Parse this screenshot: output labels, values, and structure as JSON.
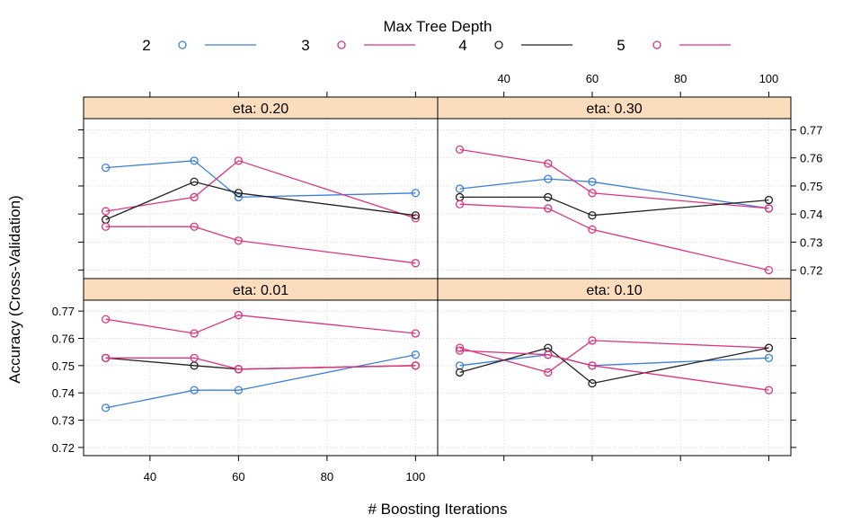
{
  "colors": {
    "depth_2": "#3b7fdb",
    "depth_3": "#e0337e",
    "depth_4": "#222222",
    "depth_5": "#e0337e",
    "strip_bg": "#fbdcbd",
    "grid": "#d9d9d9"
  },
  "chart_data": {
    "type": "line",
    "layout": "lattice 2x2 panels",
    "legend": {
      "title": "Max Tree Depth",
      "placement": "top",
      "entries": [
        {
          "label": "2",
          "color": "#3b7fdb"
        },
        {
          "label": "3",
          "color": "#e0337e"
        },
        {
          "label": "4",
          "color": "#222222"
        },
        {
          "label": "5",
          "color": "#e0337e"
        }
      ]
    },
    "xlabel": "# Boosting Iterations",
    "ylabel": "Accuracy (Cross-Validation)",
    "xlim": [
      25,
      105
    ],
    "ylim": [
      0.717,
      0.774
    ],
    "x_ticks": [
      "40",
      "60",
      "80",
      "100"
    ],
    "y_ticks": [
      "0.72",
      "0.73",
      "0.74",
      "0.75",
      "0.76",
      "0.77"
    ],
    "grid": true,
    "panels": [
      {
        "id": "tl",
        "strip": "eta: 0.20",
        "series": [
          {
            "depth": "2",
            "x": [
              30,
              50,
              60,
              100
            ],
            "y": [
              0.7565,
              0.759,
              0.746,
              0.7475
            ]
          },
          {
            "depth": "3",
            "x": [
              30,
              50,
              60,
              100
            ],
            "y": [
              0.741,
              0.746,
              0.759,
              0.7385
            ]
          },
          {
            "depth": "4",
            "x": [
              30,
              50,
              60,
              100
            ],
            "y": [
              0.738,
              0.7515,
              0.7475,
              0.7395
            ]
          },
          {
            "depth": "5",
            "x": [
              30,
              50,
              60,
              100
            ],
            "y": [
              0.7355,
              0.7355,
              0.7305,
              0.7225
            ]
          }
        ]
      },
      {
        "id": "tr",
        "strip": "eta: 0.30",
        "series": [
          {
            "depth": "2",
            "x": [
              30,
              50,
              60,
              100
            ],
            "y": [
              0.749,
              0.7525,
              0.7515,
              0.742
            ]
          },
          {
            "depth": "3",
            "x": [
              30,
              50,
              60,
              100
            ],
            "y": [
              0.763,
              0.758,
              0.7475,
              0.742
            ]
          },
          {
            "depth": "4",
            "x": [
              30,
              50,
              60,
              100
            ],
            "y": [
              0.746,
              0.746,
              0.7395,
              0.745
            ]
          },
          {
            "depth": "5",
            "x": [
              30,
              50,
              60,
              100
            ],
            "y": [
              0.7435,
              0.742,
              0.7345,
              0.72
            ]
          }
        ]
      },
      {
        "id": "bl",
        "strip": "eta: 0.01",
        "series": [
          {
            "depth": "2",
            "x": [
              30,
              50,
              60,
              100
            ],
            "y": [
              0.7345,
              0.741,
              0.741,
              0.754
            ]
          },
          {
            "depth": "3",
            "x": [
              30,
              50,
              60,
              100
            ],
            "y": [
              0.767,
              0.7618,
              0.7685,
              0.7618
            ]
          },
          {
            "depth": "4",
            "x": [
              30,
              50,
              60,
              100
            ],
            "y": [
              0.7528,
              0.75,
              0.7487,
              0.75
            ]
          },
          {
            "depth": "5",
            "x": [
              30,
              50,
              60,
              100
            ],
            "y": [
              0.7528,
              0.7528,
              0.7487,
              0.75
            ]
          }
        ]
      },
      {
        "id": "br",
        "strip": "eta: 0.10",
        "series": [
          {
            "depth": "2",
            "x": [
              30,
              50,
              60,
              100
            ],
            "y": [
              0.75,
              0.754,
              0.75,
              0.7528
            ]
          },
          {
            "depth": "3",
            "x": [
              30,
              50,
              60,
              100
            ],
            "y": [
              0.7565,
              0.7475,
              0.7592,
              0.7565
            ]
          },
          {
            "depth": "4",
            "x": [
              30,
              50,
              60,
              100
            ],
            "y": [
              0.7475,
              0.7565,
              0.7435,
              0.7565
            ]
          },
          {
            "depth": "5",
            "x": [
              30,
              50,
              60,
              100
            ],
            "y": [
              0.7555,
              0.754,
              0.75,
              0.741
            ]
          }
        ]
      }
    ]
  }
}
